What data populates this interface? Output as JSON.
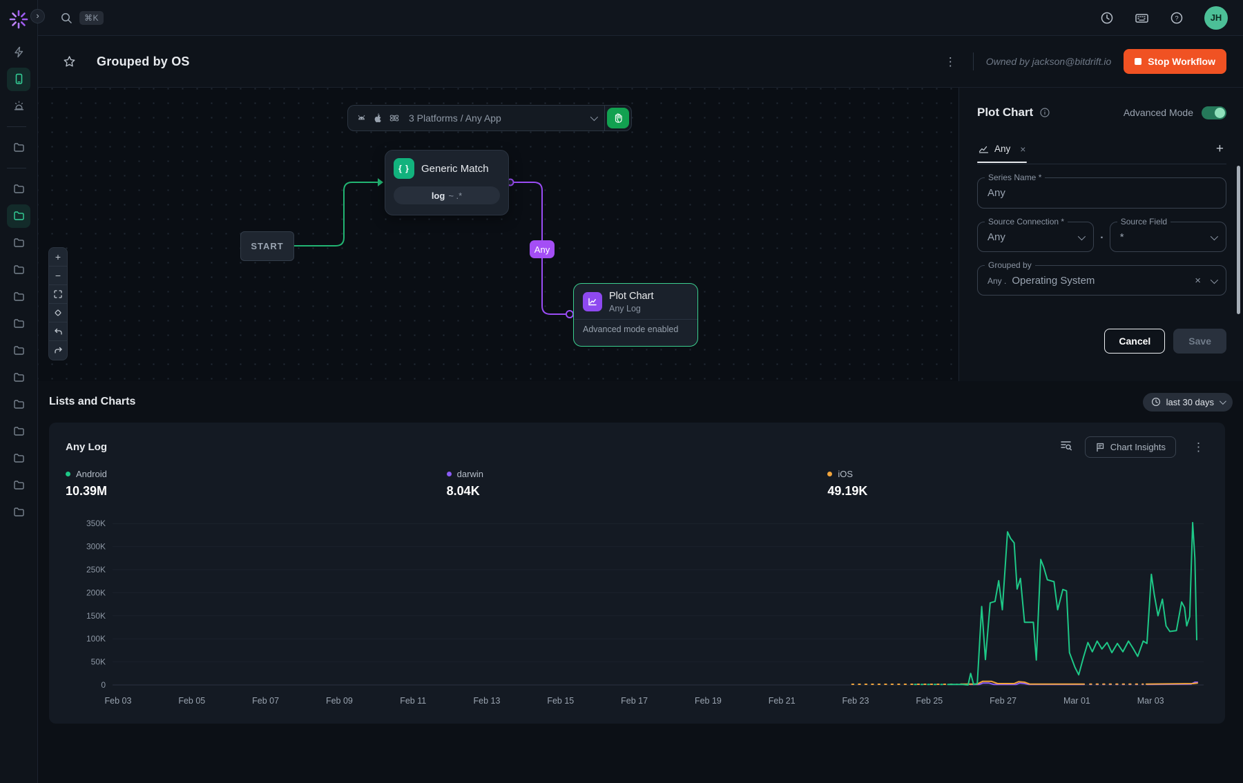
{
  "glyphs": {
    "shortcut": "⌘K",
    "chevron_right": "›",
    "kebab": "⋮",
    "close": "×",
    "add": "+",
    "zoom_in": "+",
    "zoom_out": "−",
    "dot": "."
  },
  "user": {
    "initials": "JH"
  },
  "header": {
    "title": "Grouped by OS",
    "owner": "Owned by jackson@bitdrift.io",
    "stop": "Stop Workflow"
  },
  "rail": {
    "items": [
      {
        "icon": "zap"
      },
      {
        "icon": "smartphone",
        "active": true
      },
      {
        "icon": "alarm"
      },
      {
        "divider": true
      },
      {
        "icon": "folder"
      },
      {
        "divider": true
      },
      {
        "icon": "folder"
      },
      {
        "icon": "folder",
        "active": true
      },
      {
        "icon": "folder"
      },
      {
        "icon": "folder"
      },
      {
        "icon": "folder"
      },
      {
        "icon": "folder"
      },
      {
        "icon": "folder"
      },
      {
        "icon": "folder"
      },
      {
        "icon": "folder"
      },
      {
        "icon": "folder"
      },
      {
        "icon": "folder"
      },
      {
        "icon": "folder"
      },
      {
        "icon": "folder"
      }
    ]
  },
  "canvas": {
    "platforms": "3 Platforms / Any App",
    "start": "START",
    "match_icon": "{ }",
    "match_title": "Generic Match",
    "match_key": "log",
    "match_rest": "~ .*",
    "any": "Any",
    "node_title": "Plot Chart",
    "node_sub": "Any Log",
    "node_footer": "Advanced mode enabled"
  },
  "panel": {
    "title": "Plot Chart",
    "advanced": "Advanced Mode",
    "tab": "Any",
    "series_label": "Series Name *",
    "series_value": "Any",
    "conn_label": "Source Connection *",
    "conn_value": "Any",
    "field_label": "Source Field",
    "field_value": "*",
    "grouped_label": "Grouped by",
    "grouped_prefix": "Any .",
    "grouped_value": "Operating System",
    "cancel": "Cancel",
    "save": "Save"
  },
  "section": {
    "title": "Lists and Charts",
    "range": "last 30 days"
  },
  "card": {
    "title": "Any Log",
    "insights": "Chart Insights"
  },
  "chart_data": {
    "type": "line",
    "title": "Any Log",
    "range_label": "last 30 days",
    "grid": "horizontal",
    "legend_position": "top",
    "x_unit": "days since Feb 03",
    "y_values_in": "thousands",
    "ylim": [
      0,
      370
    ],
    "x_ticks": [
      {
        "day": 0,
        "label": "Feb 03"
      },
      {
        "day": 2,
        "label": "Feb 05"
      },
      {
        "day": 4,
        "label": "Feb 07"
      },
      {
        "day": 6,
        "label": "Feb 09"
      },
      {
        "day": 8,
        "label": "Feb 11"
      },
      {
        "day": 10,
        "label": "Feb 13"
      },
      {
        "day": 12,
        "label": "Feb 15"
      },
      {
        "day": 14,
        "label": "Feb 17"
      },
      {
        "day": 16,
        "label": "Feb 19"
      },
      {
        "day": 18,
        "label": "Feb 21"
      },
      {
        "day": 20,
        "label": "Feb 23"
      },
      {
        "day": 22,
        "label": "Feb 25"
      },
      {
        "day": 24,
        "label": "Feb 27"
      },
      {
        "day": 26,
        "label": "Mar 01"
      },
      {
        "day": 28,
        "label": "Mar 03"
      }
    ],
    "y_ticks": [
      {
        "value": 0,
        "label": "0"
      },
      {
        "value": 50,
        "label": "50K"
      },
      {
        "value": 100,
        "label": "100K"
      },
      {
        "value": 150,
        "label": "150K"
      },
      {
        "value": 200,
        "label": "200K"
      },
      {
        "value": 250,
        "label": "250K"
      },
      {
        "value": 300,
        "label": "300K"
      },
      {
        "value": 350,
        "label": "350K"
      }
    ],
    "series": [
      {
        "name": "darwin",
        "total": "8.04K",
        "color": "#8b5cf6",
        "segments": [
          {
            "points": [
              [
                23.1,
                1
              ],
              [
                23.35,
                1
              ],
              [
                23.45,
                4
              ],
              [
                23.62,
                4
              ],
              [
                23.75,
                1
              ],
              [
                24.35,
                1
              ],
              [
                24.45,
                4
              ],
              [
                24.58,
                3
              ],
              [
                24.7,
                1
              ],
              [
                26.2,
                1
              ]
            ]
          },
          {
            "points": [
              [
                26.35,
                1
              ],
              [
                27.8,
                1
              ]
            ],
            "dashed": true
          },
          {
            "points": [
              [
                27.9,
                1
              ],
              [
                29.1,
                2
              ],
              [
                29.2,
                6
              ],
              [
                29.27,
                6
              ]
            ]
          }
        ]
      },
      {
        "name": "iOS",
        "total": "49.19K",
        "color": "#f0a43c",
        "segments": [
          {
            "points": [
              [
                19.9,
                1.5
              ],
              [
                22.75,
                1.5
              ]
            ],
            "dashed": true
          },
          {
            "points": [
              [
                22.85,
                2
              ],
              [
                23.3,
                2
              ],
              [
                23.45,
                8
              ],
              [
                23.68,
                8
              ],
              [
                23.85,
                3
              ],
              [
                24.3,
                3
              ],
              [
                24.42,
                7
              ],
              [
                24.58,
                6
              ],
              [
                24.72,
                2
              ],
              [
                26.2,
                2
              ]
            ]
          },
          {
            "points": [
              [
                26.35,
                2
              ],
              [
                27.8,
                2
              ]
            ],
            "dashed": true
          },
          {
            "points": [
              [
                27.88,
                2
              ],
              [
                29.15,
                3
              ],
              [
                29.27,
                4
              ]
            ]
          }
        ]
      },
      {
        "name": "Android",
        "total": "10.39M",
        "color": "#1ec887",
        "segments": [
          {
            "points": [
              [
                21.6,
                1
              ],
              [
                22.4,
                1
              ]
            ],
            "dashed": true
          },
          {
            "points": [
              [
                22.5,
                1
              ],
              [
                22.9,
                1
              ],
              [
                23.05,
                0
              ],
              [
                23.12,
                25
              ],
              [
                23.2,
                1
              ],
              [
                23.3,
                3
              ],
              [
                23.42,
                170
              ],
              [
                23.52,
                55
              ],
              [
                23.65,
                178
              ],
              [
                23.78,
                181
              ],
              [
                23.88,
                226
              ],
              [
                23.98,
                163
              ],
              [
                24.12,
                332
              ],
              [
                24.2,
                318
              ],
              [
                24.3,
                308
              ],
              [
                24.38,
                208
              ],
              [
                24.47,
                231
              ],
              [
                24.58,
                136
              ],
              [
                24.82,
                136
              ],
              [
                24.9,
                54
              ],
              [
                25.02,
                272
              ],
              [
                25.1,
                256
              ],
              [
                25.2,
                228
              ],
              [
                25.38,
                224
              ],
              [
                25.48,
                163
              ],
              [
                25.62,
                207
              ],
              [
                25.72,
                204
              ],
              [
                25.8,
                70
              ],
              [
                25.95,
                38
              ],
              [
                26.05,
                22
              ],
              [
                26.18,
                60
              ],
              [
                26.3,
                92
              ],
              [
                26.42,
                72
              ],
              [
                26.55,
                95
              ],
              [
                26.68,
                78
              ],
              [
                26.82,
                92
              ],
              [
                26.95,
                70
              ],
              [
                27.1,
                90
              ],
              [
                27.25,
                72
              ],
              [
                27.4,
                95
              ],
              [
                27.52,
                80
              ],
              [
                27.65,
                62
              ],
              [
                27.8,
                95
              ],
              [
                27.9,
                90
              ],
              [
                28.02,
                240
              ],
              [
                28.1,
                196
              ],
              [
                28.2,
                150
              ],
              [
                28.32,
                186
              ],
              [
                28.42,
                128
              ],
              [
                28.52,
                116
              ],
              [
                28.7,
                118
              ],
              [
                28.84,
                180
              ],
              [
                28.92,
                168
              ],
              [
                28.98,
                128
              ],
              [
                29.06,
                148
              ],
              [
                29.14,
                352
              ],
              [
                29.2,
                275
              ],
              [
                29.25,
                98
              ]
            ]
          }
        ]
      }
    ],
    "legend_order": [
      2,
      0,
      1
    ]
  }
}
